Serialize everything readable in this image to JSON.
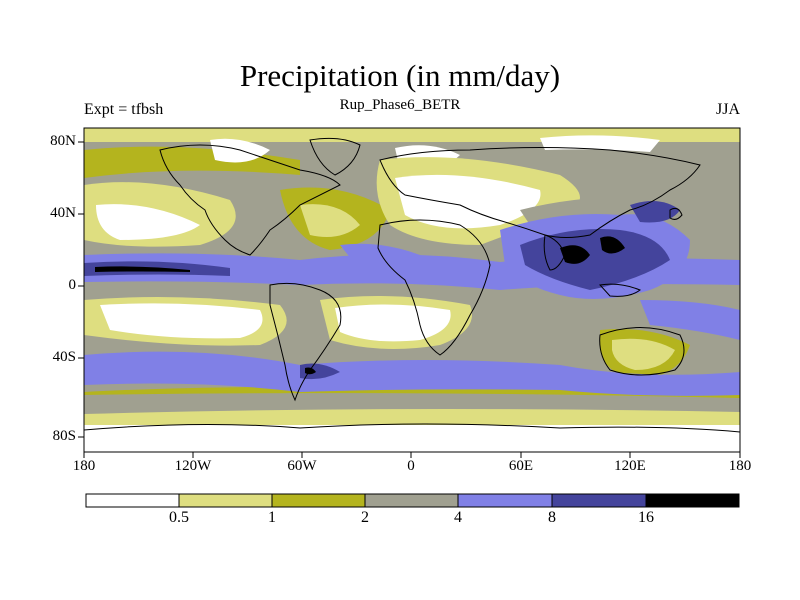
{
  "title": "Precipitation (in mm/day)",
  "subtitle": "Rup_Phase6_BETR",
  "left_label": "Expt = tfbsh",
  "right_label": "JJA",
  "lat_labels": [
    "80N",
    "40N",
    "0",
    "40S",
    "80S"
  ],
  "lon_labels": [
    "180",
    "120W",
    "60W",
    "0",
    "60E",
    "120E",
    "180"
  ],
  "colorbar": {
    "colors": [
      "#ffffff",
      "#dede80",
      "#b4b41e",
      "#a0a090",
      "#8080e6",
      "#44449c",
      "#000000"
    ],
    "labels": [
      "0.5",
      "1",
      "2",
      "4",
      "8",
      "16"
    ]
  }
}
